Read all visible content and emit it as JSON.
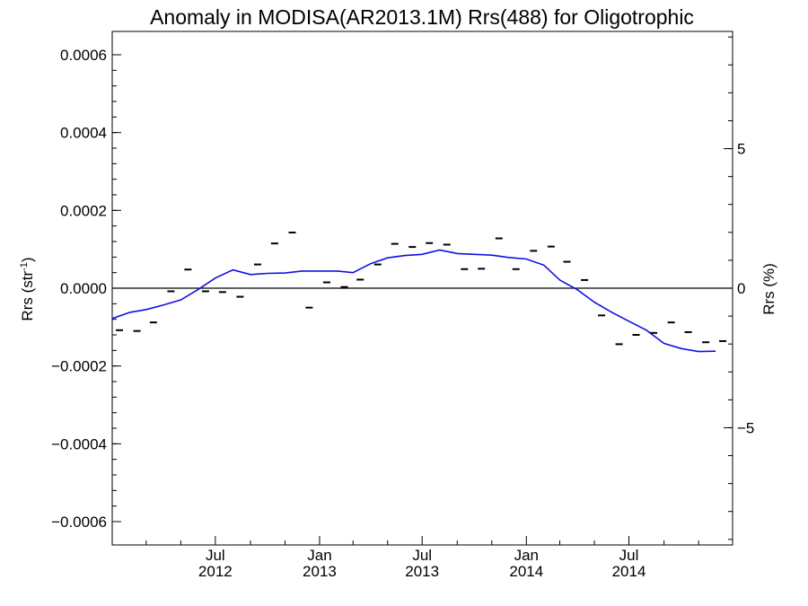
{
  "chart_data": {
    "type": "scatter",
    "title": "Anomaly in MODISA(AR2013.1M) Rrs(488) for Oligotrophic",
    "ylabel": {
      "base": "Rrs (str",
      "sup": "-1",
      "close": ")"
    },
    "ylabel_right": "Rrs (%)",
    "xlim": [
      "2012-01-01",
      "2014-12-31"
    ],
    "ylim": [
      -0.00066,
      0.00066
    ],
    "ylim_right": [
      -9.2,
      9.2
    ],
    "grid": false,
    "left_ticks": [
      {
        "value": 0.0006,
        "label": "0.0006"
      },
      {
        "value": 0.0004,
        "label": "0.0004"
      },
      {
        "value": 0.0002,
        "label": "0.0002"
      },
      {
        "value": 0.0,
        "label": "0.0000"
      },
      {
        "value": -0.0002,
        "label": "−0.0002"
      },
      {
        "value": -0.0004,
        "label": "−0.0004"
      },
      {
        "value": -0.0006,
        "label": "−0.0006"
      }
    ],
    "right_ticks": [
      {
        "value": 5,
        "label": "5"
      },
      {
        "value": 0,
        "label": "0"
      },
      {
        "value": -5,
        "label": "−5"
      }
    ],
    "x_ticks": [
      {
        "date": "2012-07-01",
        "month": "Jul",
        "year": "2012"
      },
      {
        "date": "2013-01-01",
        "month": "Jan",
        "year": "2013"
      },
      {
        "date": "2013-07-01",
        "month": "Jul",
        "year": "2013"
      },
      {
        "date": "2014-01-01",
        "month": "Jan",
        "year": "2014"
      },
      {
        "date": "2014-07-01",
        "month": "Jul",
        "year": "2014"
      }
    ],
    "series": [
      {
        "style": "dash-markers",
        "color": "#000000",
        "points": [
          {
            "x": "2012-01-01",
            "y": -0.000108
          },
          {
            "x": "2012-02-01",
            "y": -0.00011
          },
          {
            "x": "2012-03-01",
            "y": -8.8e-05
          },
          {
            "x": "2012-04-01",
            "y": -8e-06
          },
          {
            "x": "2012-05-01",
            "y": 4.8e-05
          },
          {
            "x": "2012-06-01",
            "y": -8e-06
          },
          {
            "x": "2012-07-01",
            "y": -1e-05
          },
          {
            "x": "2012-08-01",
            "y": -2.2e-05
          },
          {
            "x": "2012-09-01",
            "y": 6.1e-05
          },
          {
            "x": "2012-10-01",
            "y": 0.000115
          },
          {
            "x": "2012-11-01",
            "y": 0.000143
          },
          {
            "x": "2012-12-01",
            "y": -5e-05
          },
          {
            "x": "2013-01-01",
            "y": 1.5e-05
          },
          {
            "x": "2013-02-01",
            "y": 3e-06
          },
          {
            "x": "2013-03-01",
            "y": 2.2e-05
          },
          {
            "x": "2013-04-01",
            "y": 6.1e-05
          },
          {
            "x": "2013-05-01",
            "y": 0.000114
          },
          {
            "x": "2013-06-01",
            "y": 0.000106
          },
          {
            "x": "2013-07-01",
            "y": 0.000116
          },
          {
            "x": "2013-08-01",
            "y": 0.000112
          },
          {
            "x": "2013-09-01",
            "y": 4.9e-05
          },
          {
            "x": "2013-10-01",
            "y": 5e-05
          },
          {
            "x": "2013-11-01",
            "y": 0.000128
          },
          {
            "x": "2013-12-01",
            "y": 4.9e-05
          },
          {
            "x": "2014-01-01",
            "y": 9.6e-05
          },
          {
            "x": "2014-02-01",
            "y": 0.000107
          },
          {
            "x": "2014-03-01",
            "y": 6.8e-05
          },
          {
            "x": "2014-04-01",
            "y": 2.1e-05
          },
          {
            "x": "2014-05-01",
            "y": -7e-05
          },
          {
            "x": "2014-06-01",
            "y": -0.000144
          },
          {
            "x": "2014-07-01",
            "y": -0.00012
          },
          {
            "x": "2014-08-01",
            "y": -0.000115
          },
          {
            "x": "2014-09-01",
            "y": -8.8e-05
          },
          {
            "x": "2014-10-01",
            "y": -0.000113
          },
          {
            "x": "2014-11-01",
            "y": -0.000139
          },
          {
            "x": "2014-12-01",
            "y": -0.000136
          }
        ]
      },
      {
        "style": "line",
        "color": "#1010e0",
        "points": [
          {
            "x": "2012-01-01",
            "y": -7.8e-05
          },
          {
            "x": "2012-02-01",
            "y": -6.2e-05
          },
          {
            "x": "2012-03-01",
            "y": -5.5e-05
          },
          {
            "x": "2012-04-01",
            "y": -4.3e-05
          },
          {
            "x": "2012-05-01",
            "y": -3e-05
          },
          {
            "x": "2012-06-01",
            "y": -3e-06
          },
          {
            "x": "2012-07-01",
            "y": 2.6e-05
          },
          {
            "x": "2012-08-01",
            "y": 4.7e-05
          },
          {
            "x": "2012-09-01",
            "y": 3.5e-05
          },
          {
            "x": "2012-10-01",
            "y": 3.8e-05
          },
          {
            "x": "2012-11-01",
            "y": 3.9e-05
          },
          {
            "x": "2012-12-01",
            "y": 4.4e-05
          },
          {
            "x": "2013-01-01",
            "y": 4.4e-05
          },
          {
            "x": "2013-02-01",
            "y": 4.4e-05
          },
          {
            "x": "2013-03-01",
            "y": 4e-05
          },
          {
            "x": "2013-04-01",
            "y": 6.3e-05
          },
          {
            "x": "2013-05-01",
            "y": 7.8e-05
          },
          {
            "x": "2013-06-01",
            "y": 8.4e-05
          },
          {
            "x": "2013-07-01",
            "y": 8.7e-05
          },
          {
            "x": "2013-08-01",
            "y": 9.8e-05
          },
          {
            "x": "2013-09-01",
            "y": 8.9e-05
          },
          {
            "x": "2013-10-01",
            "y": 8.7e-05
          },
          {
            "x": "2013-11-01",
            "y": 8.5e-05
          },
          {
            "x": "2013-12-01",
            "y": 7.9e-05
          },
          {
            "x": "2014-01-01",
            "y": 7.5e-05
          },
          {
            "x": "2014-02-01",
            "y": 5.9e-05
          },
          {
            "x": "2014-03-01",
            "y": 2.1e-05
          },
          {
            "x": "2014-04-01",
            "y": -4e-06
          },
          {
            "x": "2014-05-01",
            "y": -3.6e-05
          },
          {
            "x": "2014-06-01",
            "y": -6.2e-05
          },
          {
            "x": "2014-07-01",
            "y": -8.5e-05
          },
          {
            "x": "2014-08-01",
            "y": -0.000108
          },
          {
            "x": "2014-09-01",
            "y": -0.000142
          },
          {
            "x": "2014-10-01",
            "y": -0.000155
          },
          {
            "x": "2014-11-01",
            "y": -0.000163
          },
          {
            "x": "2014-12-01",
            "y": -0.000162
          }
        ]
      }
    ]
  }
}
